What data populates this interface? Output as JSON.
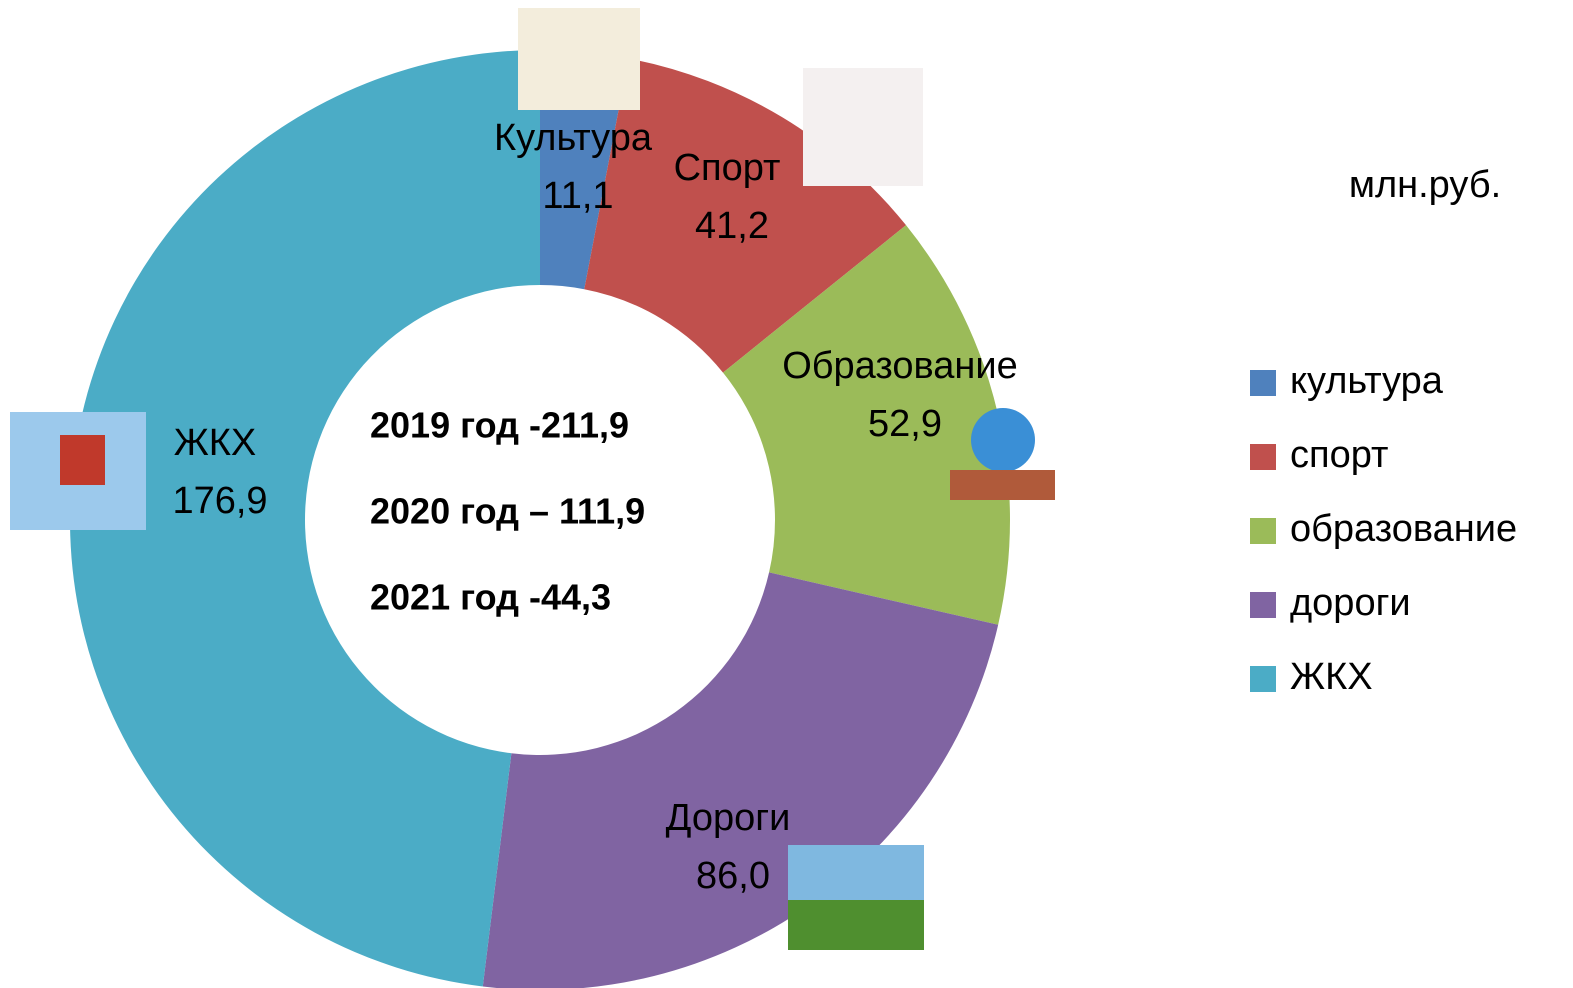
{
  "chart_data": {
    "type": "donut",
    "subtitle": "млн.руб.",
    "categories": [
      "культура",
      "спорт",
      "образование",
      "дороги",
      "ЖКХ"
    ],
    "data_label_names": [
      "Культура",
      "Спорт",
      "Образование",
      "Дороги",
      "ЖКХ"
    ],
    "values": [
      11.1,
      41.2,
      52.9,
      86.0,
      176.9
    ],
    "value_labels": [
      "11,1",
      "41,2",
      "52,9",
      "86,0",
      "176,9"
    ],
    "colors": [
      "#4f81bd",
      "#c0504d",
      "#9bbb59",
      "#8064a2",
      "#4bacc6"
    ],
    "annotations": [
      "2019 год -211,9",
      "2020 год – 111,9",
      "2021 год -44,3"
    ],
    "legend": "right"
  }
}
